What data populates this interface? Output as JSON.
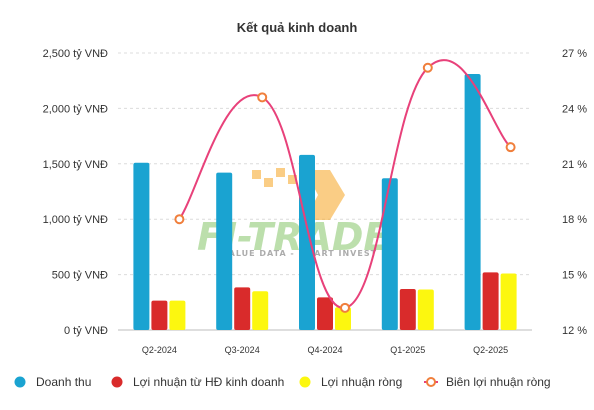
{
  "chart_data": {
    "type": "bar",
    "title": "Kết quả kinh doanh",
    "categories": [
      "Q2-2024",
      "Q3-2024",
      "Q4-2024",
      "Q1-2025",
      "Q2-2025"
    ],
    "y_left": {
      "ticks": [
        "0 tỷ VNĐ",
        "500 tỷ VNĐ",
        "1,000 tỷ VNĐ",
        "1,500 tỷ VNĐ",
        "2,000 tỷ VNĐ",
        "2,500 tỷ VNĐ"
      ],
      "range": [
        0,
        2500
      ]
    },
    "y_right": {
      "ticks": [
        "12 %",
        "15 %",
        "18 %",
        "21 %",
        "24 %",
        "27 %"
      ],
      "range": [
        12,
        27
      ]
    },
    "series": [
      {
        "name": "Doanh thu",
        "type": "bar",
        "axis": "left",
        "color": "#1aa3d1",
        "values": [
          1510,
          1420,
          1580,
          1370,
          2310
        ]
      },
      {
        "name": "Lợi nhuận từ HĐ kinh doanh",
        "type": "bar",
        "axis": "left",
        "color": "#d92b2b",
        "values": [
          265,
          385,
          295,
          370,
          520
        ]
      },
      {
        "name": "Lợi nhuận ròng",
        "type": "bar",
        "axis": "left",
        "color": "#fcf70f",
        "values": [
          265,
          350,
          205,
          365,
          510
        ]
      },
      {
        "name": "Biên lợi nhuận ròng",
        "type": "line",
        "axis": "right",
        "color": "#e8417a",
        "marker_color": "#f07f3c",
        "values": [
          18.0,
          24.6,
          13.2,
          26.2,
          21.9
        ]
      }
    ],
    "legend_position": "bottom",
    "grid": true
  },
  "watermark": {
    "brand": "FI-TRADE",
    "tagline": "VALUE DATA - SMART INVEST"
  }
}
